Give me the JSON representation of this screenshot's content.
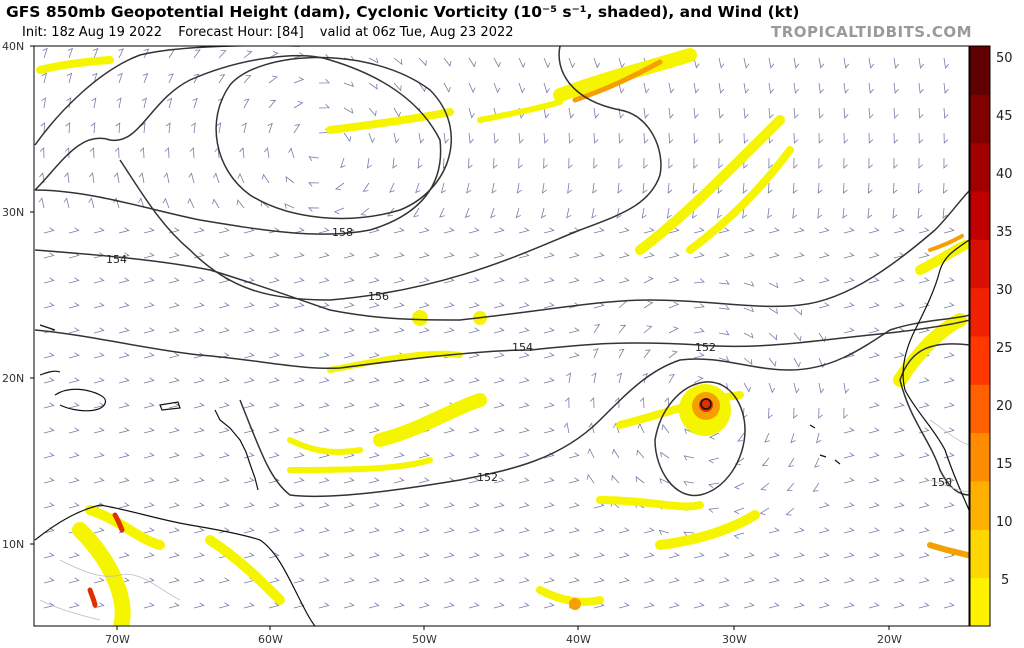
{
  "header": {
    "title": "GFS 850mb Geopotential Height (dam), Cyclonic Vorticity (10⁻⁵ s⁻¹, shaded), and Wind (kt)",
    "init": "Init: 18z Aug 19 2022",
    "forecast_hour": "Forecast Hour: [84]",
    "valid": "valid at 06z Tue, Aug 23 2022",
    "brand": "TROPICALTIDBITS.COM"
  },
  "map": {
    "lat_labels": [
      "40N",
      "30N",
      "20N",
      "10N"
    ],
    "lon_labels": [
      "70W",
      "60W",
      "50W",
      "40W",
      "30W",
      "20W"
    ],
    "contour_labels": [
      "158",
      "154",
      "156",
      "154",
      "152",
      "152",
      "150"
    ],
    "colors": {
      "land_outline": "#111111",
      "contour": "#333333",
      "barb": "#4b4f8c",
      "vort_low": "#f6f500",
      "vort_mid": "#f5a000",
      "vort_high": "#e03000",
      "vort_core": "#a00000"
    }
  },
  "colorbar": {
    "ticks": [
      "50",
      "45",
      "40",
      "35",
      "30",
      "25",
      "20",
      "15",
      "10",
      "5"
    ],
    "stops": [
      "#fff200",
      "#ffd700",
      "#ffb000",
      "#ff8c00",
      "#ff6000",
      "#ff3800",
      "#f02000",
      "#d81000",
      "#c00000",
      "#a00000",
      "#800000",
      "#600000"
    ]
  }
}
